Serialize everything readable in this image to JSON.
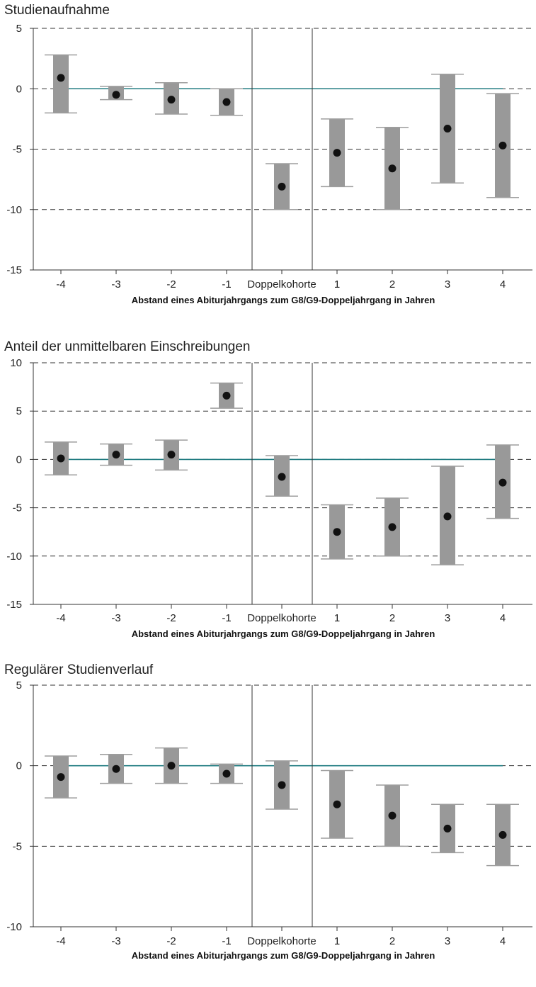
{
  "chart_data": [
    {
      "type": "errorbar",
      "title": "Studienaufnahme",
      "xlabel": "Abstand eines Abiturjahrgangs zum G8/G9-Doppeljahrgang in Jahren",
      "categories": [
        "-4",
        "-3",
        "-2",
        "-1",
        "Doppelkohorte",
        "1",
        "2",
        "3",
        "4"
      ],
      "values": [
        0.9,
        -0.5,
        -0.9,
        -1.1,
        -8.1,
        -5.3,
        -6.6,
        -3.3,
        -4.7
      ],
      "lower": [
        -2.0,
        -0.9,
        -2.1,
        -2.2,
        -10.0,
        -8.1,
        -10.0,
        -7.8,
        -9.0
      ],
      "upper": [
        2.8,
        0.2,
        0.5,
        0.0,
        -6.2,
        -2.5,
        -3.2,
        1.2,
        -0.4
      ],
      "ylim": [
        -15,
        5
      ],
      "yticks": [
        5,
        0,
        -5,
        -10,
        -15
      ],
      "grid": true,
      "colors": {
        "bar": "#999999",
        "cap": "#9e9e9e",
        "dot": "#111111",
        "zero_line": "#1f7b80",
        "grid": "#333333"
      }
    },
    {
      "type": "errorbar",
      "title": "Anteil der unmittelbaren Einschreibungen",
      "xlabel": "Abstand eines Abiturjahrgangs zum G8/G9-Doppeljahrgang in Jahren",
      "categories": [
        "-4",
        "-3",
        "-2",
        "-1",
        "Doppelkohorte",
        "1",
        "2",
        "3",
        "4"
      ],
      "values": [
        0.1,
        0.5,
        0.5,
        6.6,
        -1.8,
        -7.5,
        -7.0,
        -5.9,
        -2.4
      ],
      "lower": [
        -1.6,
        -0.6,
        -1.1,
        5.3,
        -3.8,
        -10.3,
        -10.0,
        -10.9,
        -6.1
      ],
      "upper": [
        1.8,
        1.6,
        2.0,
        7.9,
        0.4,
        -4.7,
        -4.0,
        -0.7,
        1.5
      ],
      "ylim": [
        -15,
        10
      ],
      "yticks": [
        10,
        5,
        0,
        -5,
        -10,
        -15
      ],
      "grid": true,
      "colors": {
        "bar": "#999999",
        "cap": "#9e9e9e",
        "dot": "#111111",
        "zero_line": "#1f7b80",
        "grid": "#333333"
      }
    },
    {
      "type": "errorbar",
      "title": "Regulärer Studienverlauf",
      "xlabel": "Abstand eines Abiturjahrgangs zum G8/G9-Doppeljahrgang in Jahren",
      "categories": [
        "-4",
        "-3",
        "-2",
        "-1",
        "Doppelkohorte",
        "1",
        "2",
        "3",
        "4"
      ],
      "values": [
        -0.7,
        -0.2,
        0.0,
        -0.5,
        -1.2,
        -2.4,
        -3.1,
        -3.9,
        -4.3
      ],
      "lower": [
        -2.0,
        -1.1,
        -1.1,
        -1.1,
        -2.7,
        -4.5,
        -5.0,
        -5.4,
        -6.2
      ],
      "upper": [
        0.6,
        0.7,
        1.1,
        0.1,
        0.3,
        -0.3,
        -1.2,
        -2.4,
        -2.4
      ],
      "ylim": [
        -10,
        5
      ],
      "yticks": [
        5,
        0,
        -5,
        -10
      ],
      "grid": true,
      "colors": {
        "bar": "#999999",
        "cap": "#9e9e9e",
        "dot": "#111111",
        "zero_line": "#1f7b80",
        "grid": "#333333"
      }
    }
  ]
}
